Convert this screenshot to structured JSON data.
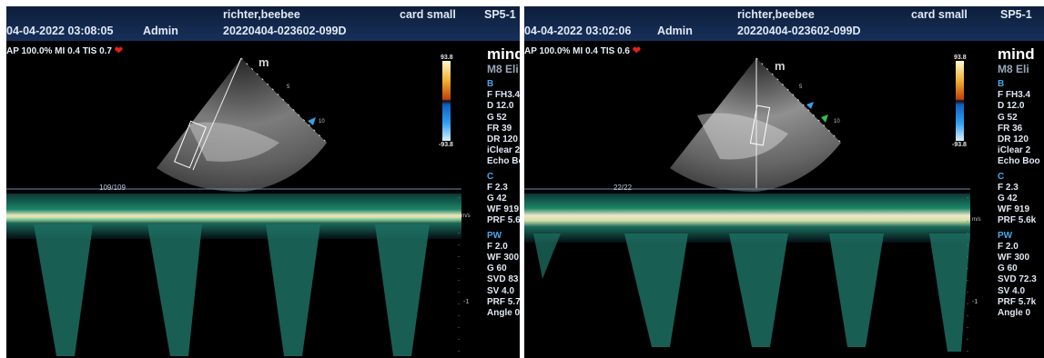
{
  "left": {
    "datetime": "04-04-2022 03:08:05",
    "operator": "Admin",
    "patient_name": "richter,beebee",
    "exam_id": "20220404-023602-099D",
    "preset": "card small",
    "probe": "SP5-1",
    "acoustic": "AP 100.0%  MI 0.4  TIS 0.7",
    "brand": "mind",
    "model": "M8 Eli",
    "scale_top": "93.8",
    "scale_bottom": "-93.8",
    "sector_marker": "m",
    "depth_mark_5": "5",
    "depth_mark_10": "10",
    "sweep_count": "109/109",
    "velocity_unit": "m/s",
    "baseline_mark": "-1",
    "b_section": {
      "title": "B",
      "lines": [
        "F FH3.4",
        "D 12.0",
        "G 52",
        "FR 39",
        "DR 120",
        "iClear 2",
        "Echo Bo"
      ]
    },
    "c_section": {
      "title": "C",
      "lines": [
        "F 2.3",
        "G 42",
        "WF 919",
        "PRF 5.6"
      ]
    },
    "pw_section": {
      "title": "PW",
      "lines": [
        "F 2.0",
        "WF 300",
        "G 60",
        "SVD 83",
        "SV 4.0",
        "PRF 5.7",
        "Angle 0"
      ]
    }
  },
  "right": {
    "datetime": "04-04-2022 03:02:06",
    "operator": "Admin",
    "patient_name": "richter,beebee",
    "exam_id": "20220404-023602-099D",
    "preset": "card small",
    "probe": "SP5-1",
    "acoustic": "AP 100.0%  MI 0.4  TIS 0.6",
    "brand": "mind",
    "model": "M8 Eli",
    "scale_top": "93.8",
    "scale_bottom": "-93.8",
    "sector_marker": "m",
    "depth_mark_5": "5",
    "depth_mark_10": "10",
    "sweep_count": "22/22",
    "velocity_unit": "m/s",
    "baseline_mark": "-1",
    "b_section": {
      "title": "B",
      "lines": [
        "F FH3.4",
        "D 12.0",
        "G 52",
        "FR 36",
        "DR 120",
        "iClear 2",
        "Echo Boo"
      ]
    },
    "c_section": {
      "title": "C",
      "lines": [
        "F 2.3",
        "G 42",
        "WF 919",
        "PRF 5.6k"
      ]
    },
    "pw_section": {
      "title": "PW",
      "lines": [
        "F 2.0",
        "WF 300",
        "G 60",
        "SVD 72.3",
        "SV 4.0",
        "PRF 5.7k",
        "Angle 0"
      ]
    }
  }
}
